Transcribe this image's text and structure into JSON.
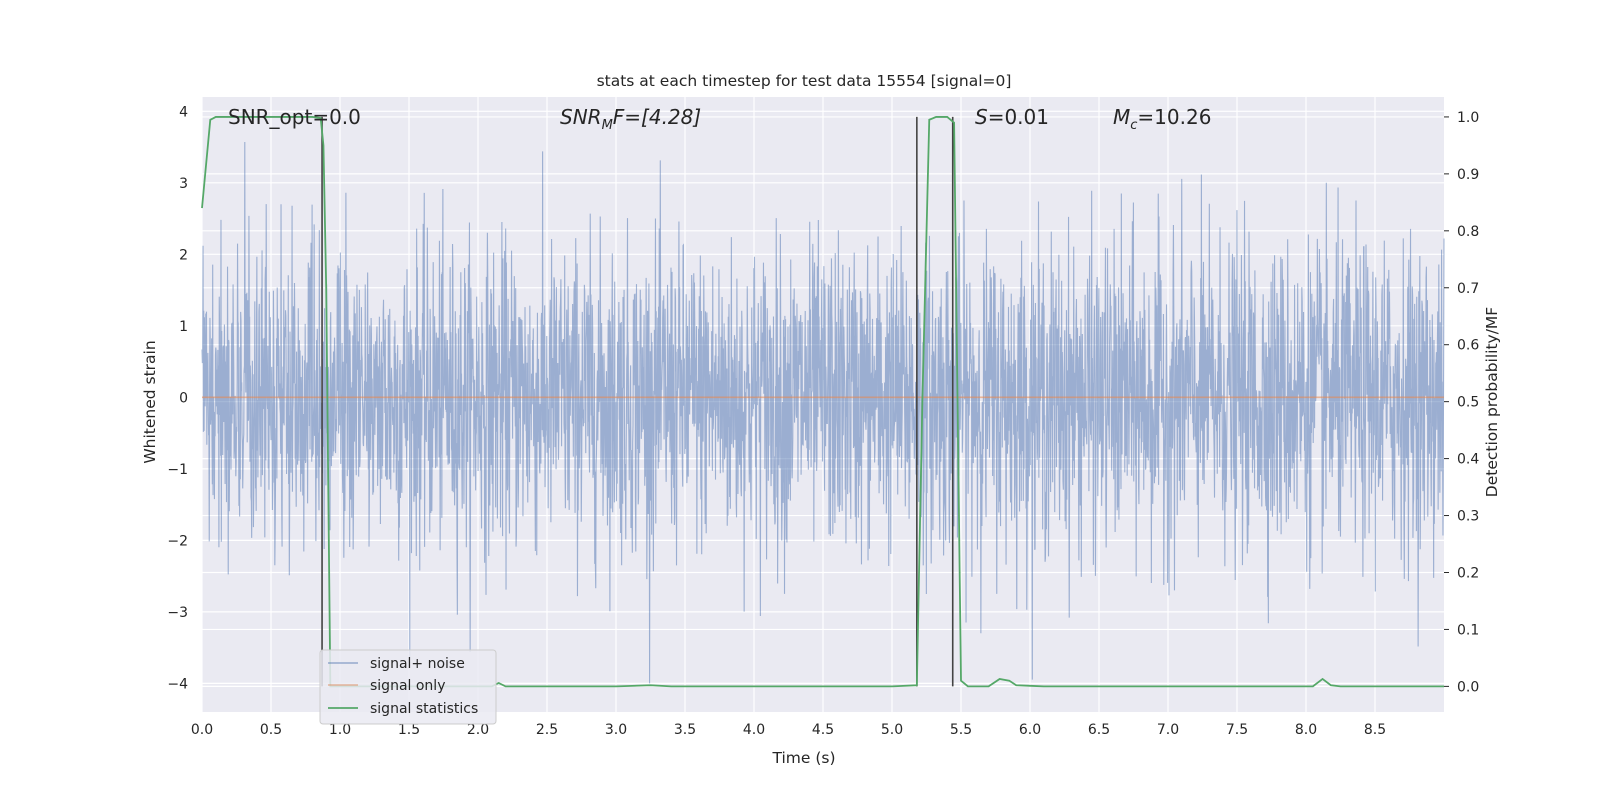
{
  "chart_data": {
    "type": "line",
    "title": "stats at each timestep for test data 15554 [signal=0]",
    "xlabel": "Time (s)",
    "ylabel": "Whitened strain",
    "ylabel_right": "Detection probability/MF",
    "xlim": [
      0.0,
      9.0
    ],
    "ylim": [
      -4.4,
      4.2
    ],
    "ylim_right": [
      -0.045,
      1.035
    ],
    "x_ticks": [
      "0.0",
      "0.5",
      "1.0",
      "1.5",
      "2.0",
      "2.5",
      "3.0",
      "3.5",
      "4.0",
      "4.5",
      "5.0",
      "5.5",
      "6.0",
      "6.5",
      "7.0",
      "7.5",
      "8.0",
      "8.5"
    ],
    "y_ticks": [
      "−4",
      "−3",
      "−2",
      "−1",
      "0",
      "1",
      "2",
      "3",
      "4"
    ],
    "y_right_ticks": [
      "0.0",
      "0.1",
      "0.2",
      "0.3",
      "0.4",
      "0.5",
      "0.6",
      "0.7",
      "0.8",
      "0.9",
      "1.0"
    ],
    "grid": true,
    "annotations": {
      "snr_opt": "SNR_opt=0.0",
      "snr_mf_base": "SNR",
      "snr_mf_sub": "M",
      "snr_mf_rest": "F=[4.28]",
      "s_italic": "S",
      "s_rest": "=0.01",
      "mc_base": "M",
      "mc_sub": "c",
      "mc_rest": "=10.26"
    },
    "legend_position": "lower-left",
    "series": [
      {
        "name": "signal+ noise",
        "color": "#4c72b0",
        "description_values": "whitened noisy strain, roughly gaussian with std ~1 over 0–9 s"
      },
      {
        "name": "signal only",
        "color": "#dd8452",
        "x": [
          0.0,
          9.0
        ],
        "values": [
          0.0,
          0.0
        ]
      },
      {
        "name": "signal statistics",
        "color": "#55a868",
        "x": [
          0.0,
          0.06,
          0.1,
          0.15,
          0.2,
          0.3,
          0.4,
          0.5,
          0.6,
          0.7,
          0.8,
          0.86,
          0.88,
          0.9,
          0.93,
          1.0,
          1.5,
          2.0,
          2.1,
          2.15,
          2.2,
          2.5,
          3.0,
          3.25,
          3.4,
          3.5,
          4.0,
          4.5,
          5.0,
          5.18,
          5.22,
          5.27,
          5.32,
          5.4,
          5.45,
          5.5,
          5.55,
          5.7,
          5.78,
          5.85,
          5.9,
          6.0,
          6.1,
          6.2,
          6.5,
          7.0,
          7.5,
          8.05,
          8.12,
          8.18,
          8.25,
          8.5,
          9.0
        ],
        "values": [
          0.84,
          0.995,
          1.0,
          1.0,
          1.0,
          1.0,
          1.0,
          1.0,
          1.0,
          1.0,
          1.0,
          0.998,
          0.95,
          0.7,
          0.0,
          0.0,
          0.0,
          0.0,
          0.0,
          0.006,
          0.0,
          0.0,
          0.0,
          0.002,
          0.0,
          0.0,
          0.0,
          0.0,
          0.0,
          0.002,
          0.5,
          0.995,
          1.0,
          1.0,
          0.99,
          0.01,
          0.0,
          0.0,
          0.013,
          0.01,
          0.002,
          0.001,
          0.0,
          0.0,
          0.0,
          0.0,
          0.0,
          0.0,
          0.013,
          0.002,
          0.0,
          0.0,
          0.0
        ]
      }
    ],
    "vertical_lines_x": [
      0.87,
      5.18,
      5.44
    ]
  }
}
